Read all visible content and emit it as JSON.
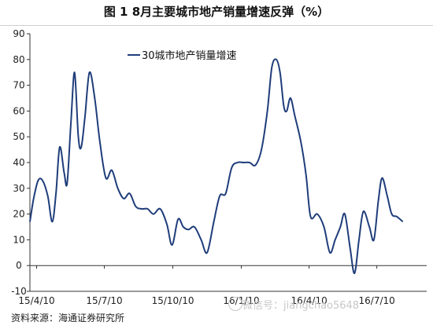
{
  "title": "图 1   8月主要城市地产销量增速反弹（%）",
  "source": "资料来源：海通证券研究所",
  "watermark": "微信号：jiangchao5648",
  "chart_data": {
    "type": "line",
    "title": "图 1   8月主要城市地产销量增速反弹（%）",
    "xlabel": "",
    "ylabel": "",
    "ylim": [
      -10,
      90
    ],
    "yticks": [
      -10,
      0,
      10,
      20,
      30,
      40,
      50,
      60,
      70,
      80,
      90
    ],
    "xlim": [
      "2015-04-01",
      "2016-09-15"
    ],
    "xticks": [
      {
        "date": "2015-04-10",
        "label": "15/4/10"
      },
      {
        "date": "2015-07-10",
        "label": "15/7/10"
      },
      {
        "date": "2015-10-10",
        "label": "15/10/10"
      },
      {
        "date": "2016-01-10",
        "label": "16/1/10"
      },
      {
        "date": "2016-04-10",
        "label": "16/4/10"
      },
      {
        "date": "2016-07-10",
        "label": "16/7/10"
      }
    ],
    "grid": false,
    "legend": "top-left",
    "series": [
      {
        "name": "30城市地产销量增速",
        "color": "#1f3d7a",
        "points": [
          [
            "2015-04-01",
            17
          ],
          [
            "2015-04-06",
            26
          ],
          [
            "2015-04-12",
            33
          ],
          [
            "2015-04-18",
            33
          ],
          [
            "2015-04-25",
            27
          ],
          [
            "2015-05-01",
            17
          ],
          [
            "2015-05-06",
            28
          ],
          [
            "2015-05-11",
            46
          ],
          [
            "2015-05-17",
            36
          ],
          [
            "2015-05-21",
            32
          ],
          [
            "2015-05-26",
            55
          ],
          [
            "2015-05-31",
            75
          ],
          [
            "2015-06-05",
            50
          ],
          [
            "2015-06-09",
            46
          ],
          [
            "2015-06-14",
            58
          ],
          [
            "2015-06-20",
            75
          ],
          [
            "2015-06-27",
            65
          ],
          [
            "2015-07-04",
            48
          ],
          [
            "2015-07-12",
            34
          ],
          [
            "2015-07-20",
            37
          ],
          [
            "2015-07-28",
            30
          ],
          [
            "2015-08-05",
            26
          ],
          [
            "2015-08-13",
            28
          ],
          [
            "2015-08-21",
            23
          ],
          [
            "2015-08-29",
            22
          ],
          [
            "2015-09-06",
            22
          ],
          [
            "2015-09-14",
            20
          ],
          [
            "2015-09-23",
            22
          ],
          [
            "2015-10-02",
            16
          ],
          [
            "2015-10-09",
            8
          ],
          [
            "2015-10-17",
            18
          ],
          [
            "2015-10-24",
            15
          ],
          [
            "2015-10-31",
            14
          ],
          [
            "2015-11-08",
            15
          ],
          [
            "2015-11-17",
            10
          ],
          [
            "2015-11-25",
            5
          ],
          [
            "2015-12-04",
            17
          ],
          [
            "2015-12-12",
            27
          ],
          [
            "2015-12-20",
            28
          ],
          [
            "2015-12-28",
            38
          ],
          [
            "2016-01-05",
            40
          ],
          [
            "2016-01-13",
            40
          ],
          [
            "2016-01-21",
            40
          ],
          [
            "2016-01-29",
            39
          ],
          [
            "2016-02-06",
            45
          ],
          [
            "2016-02-14",
            60
          ],
          [
            "2016-02-20",
            77
          ],
          [
            "2016-02-26",
            80
          ],
          [
            "2016-03-02",
            75
          ],
          [
            "2016-03-07",
            62
          ],
          [
            "2016-03-11",
            60
          ],
          [
            "2016-03-16",
            65
          ],
          [
            "2016-03-22",
            58
          ],
          [
            "2016-03-30",
            48
          ],
          [
            "2016-04-06",
            35
          ],
          [
            "2016-04-12",
            19
          ],
          [
            "2016-04-21",
            20
          ],
          [
            "2016-04-30",
            15
          ],
          [
            "2016-05-08",
            5
          ],
          [
            "2016-05-15",
            10
          ],
          [
            "2016-05-22",
            15
          ],
          [
            "2016-05-28",
            20
          ],
          [
            "2016-06-04",
            7
          ],
          [
            "2016-06-10",
            -3
          ],
          [
            "2016-06-16",
            10
          ],
          [
            "2016-06-22",
            21
          ],
          [
            "2016-06-30",
            15
          ],
          [
            "2016-07-06",
            10
          ],
          [
            "2016-07-12",
            25
          ],
          [
            "2016-07-17",
            34
          ],
          [
            "2016-07-24",
            27
          ],
          [
            "2016-07-30",
            20
          ],
          [
            "2016-08-06",
            19
          ],
          [
            "2016-08-14",
            17
          ]
        ]
      }
    ]
  }
}
